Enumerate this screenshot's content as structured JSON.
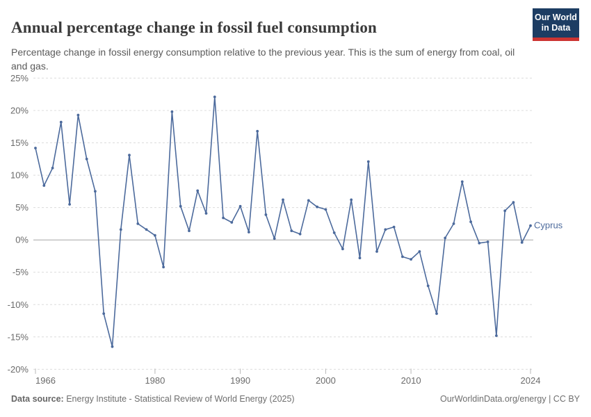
{
  "header": {
    "title": "Annual percentage change in fossil fuel consumption",
    "subtitle": "Percentage change in fossil energy consumption relative to the previous year. This is the sum of energy from coal, oil and gas.",
    "logo_line1": "Our World",
    "logo_line2": "in Data"
  },
  "chart_data": {
    "type": "line",
    "title": "Annual percentage change in fossil fuel consumption",
    "subtitle": "Percentage change in fossil energy consumption relative to the previous year. This is the sum of energy from coal, oil and gas.",
    "xlabel": "",
    "ylabel": "",
    "xlim": [
      1966,
      2024
    ],
    "ylim": [
      -20,
      25
    ],
    "x_ticks": [
      1966,
      1980,
      1990,
      2000,
      2010,
      2024
    ],
    "y_ticks": [
      25,
      20,
      15,
      10,
      5,
      0,
      -5,
      -10,
      -15,
      -20
    ],
    "y_tick_suffix": "%",
    "grid": "horizontal-dashed",
    "zero_line": true,
    "legend_position": "end-of-line-label",
    "series": [
      {
        "name": "Cyprus",
        "color": "#4c6a9c",
        "years": [
          1966,
          1967,
          1968,
          1969,
          1970,
          1971,
          1972,
          1973,
          1974,
          1975,
          1976,
          1977,
          1978,
          1979,
          1980,
          1981,
          1982,
          1983,
          1984,
          1985,
          1986,
          1987,
          1988,
          1989,
          1990,
          1991,
          1992,
          1993,
          1994,
          1995,
          1996,
          1997,
          1998,
          1999,
          2000,
          2001,
          2002,
          2003,
          2004,
          2005,
          2006,
          2007,
          2008,
          2009,
          2010,
          2011,
          2012,
          2013,
          2014,
          2015,
          2016,
          2017,
          2018,
          2019,
          2020,
          2021,
          2022,
          2023,
          2024
        ],
        "values": [
          14.2,
          8.4,
          11.1,
          18.2,
          5.5,
          19.3,
          12.5,
          7.5,
          -11.4,
          -16.5,
          1.6,
          13.1,
          2.5,
          1.6,
          0.7,
          -4.2,
          19.8,
          5.2,
          1.4,
          7.6,
          4.1,
          22.1,
          3.4,
          2.7,
          5.2,
          1.2,
          16.8,
          3.9,
          0.2,
          6.2,
          1.4,
          0.9,
          6.1,
          5.1,
          4.7,
          1.1,
          -1.4,
          6.2,
          -2.8,
          12.1,
          -1.8,
          1.6,
          2.0,
          -2.6,
          -3.0,
          -1.8,
          -7.1,
          -11.4,
          0.3,
          2.5,
          9.0,
          2.8,
          -0.5,
          -0.3,
          -14.8,
          4.5,
          5.8,
          -0.4,
          2.2
        ]
      }
    ],
    "colors": {
      "line": "#4c6a9c",
      "gridline": "#dcdcdc",
      "zero_line": "#a5a5a5",
      "tick_label": "#6b6b6b"
    }
  },
  "footer": {
    "source_label": "Data source:",
    "source_text": " Energy Institute - Statistical Review of World Energy (2025)",
    "link_text": "OurWorldinData.org/energy | CC BY"
  }
}
